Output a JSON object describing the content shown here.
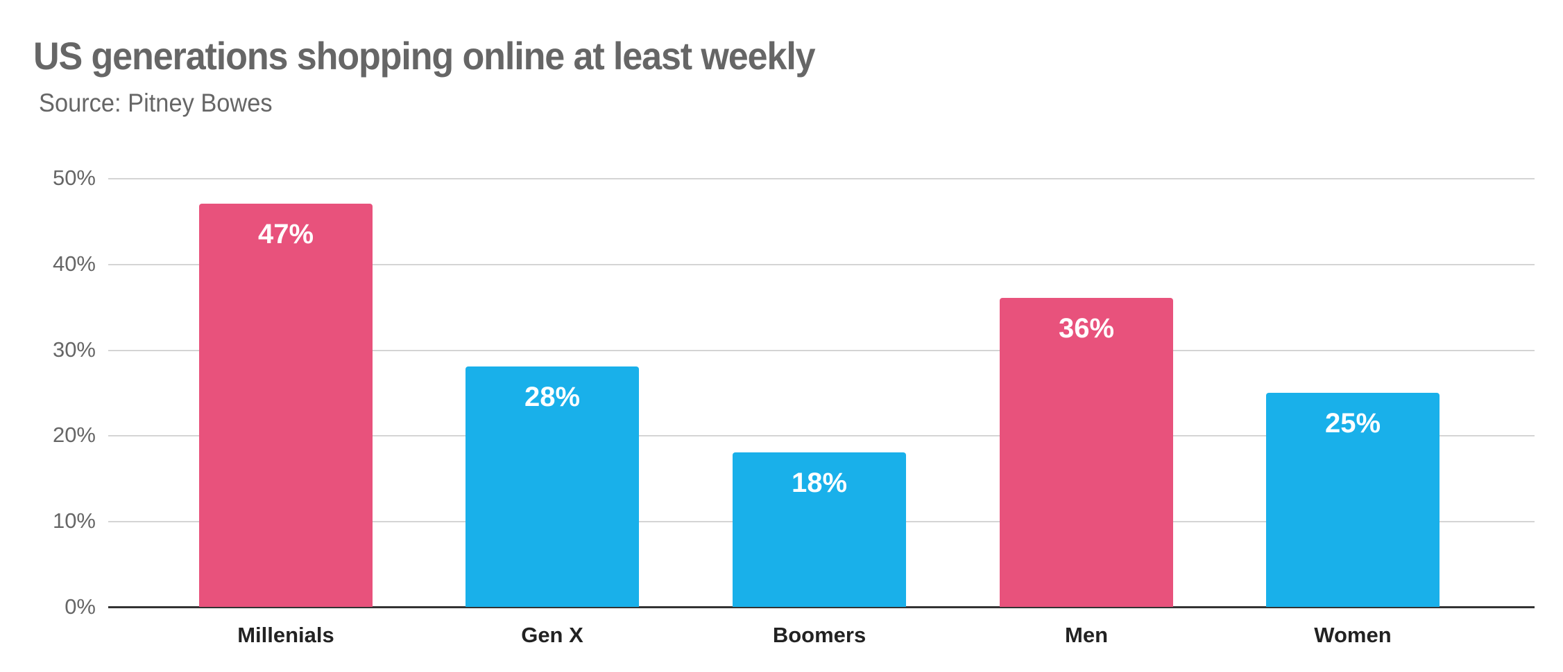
{
  "header": {
    "title": "US generations shopping online at least weekly",
    "subtitle": "Source: Pitney Bowes"
  },
  "colors": {
    "pink": "#e8527c",
    "blue": "#19b0ea",
    "grid": "#d4d4d4",
    "axis": "#333333",
    "text_muted": "#666666",
    "text_dark": "#222222"
  },
  "yaxis": {
    "ticks": [
      "0%",
      "10%",
      "20%",
      "30%",
      "40%",
      "50%"
    ]
  },
  "bars": [
    {
      "category": "Millenials",
      "value": 47,
      "label": "47%",
      "color": "#e8527c"
    },
    {
      "category": "Gen X",
      "value": 28,
      "label": "28%",
      "color": "#19b0ea"
    },
    {
      "category": "Boomers",
      "value": 18,
      "label": "18%",
      "color": "#19b0ea"
    },
    {
      "category": "Men",
      "value": 36,
      "label": "36%",
      "color": "#e8527c"
    },
    {
      "category": "Women",
      "value": 25,
      "label": "25%",
      "color": "#19b0ea"
    }
  ],
  "chart_data": {
    "type": "bar",
    "title": "US generations shopping online at least weekly",
    "subtitle": "Source: Pitney Bowes",
    "categories": [
      "Millenials",
      "Gen X",
      "Boomers",
      "Men",
      "Women"
    ],
    "values": [
      47,
      28,
      18,
      36,
      25
    ],
    "data_labels": [
      "47%",
      "28%",
      "18%",
      "36%",
      "25%"
    ],
    "bar_colors": [
      "#e8527c",
      "#19b0ea",
      "#19b0ea",
      "#e8527c",
      "#19b0ea"
    ],
    "xlabel": "",
    "ylabel": "",
    "ylim": [
      0,
      50
    ],
    "yticks": [
      "0%",
      "10%",
      "20%",
      "30%",
      "40%",
      "50%"
    ],
    "grid": true,
    "legend": null
  }
}
